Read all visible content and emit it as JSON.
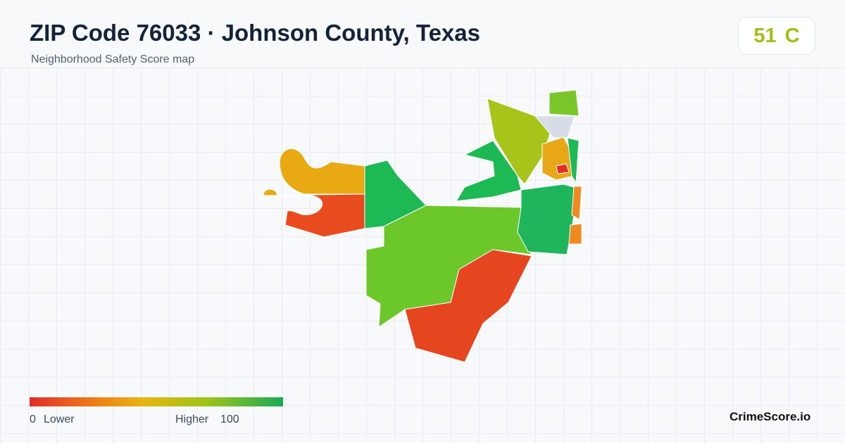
{
  "header": {
    "title": "ZIP Code 76033 · Johnson County, Texas",
    "subtitle": "Neighborhood Safety Score map"
  },
  "score": {
    "value": 51,
    "grade": "C"
  },
  "legend": {
    "min": 0,
    "min_label": "Lower",
    "max_label": "Higher",
    "max": 100
  },
  "footer": {
    "brand": "CrimeScore.io"
  }
}
